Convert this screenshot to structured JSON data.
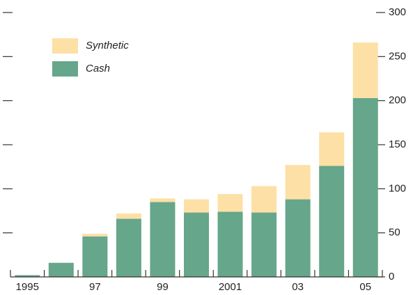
{
  "chart_data": {
    "type": "stacked_bar",
    "categories": [
      "1995",
      null,
      "97",
      null,
      "99",
      null,
      "2001",
      null,
      "03",
      null,
      "05"
    ],
    "series": [
      {
        "name": "Cash",
        "color": "#66a68a",
        "values": [
          2,
          16,
          46,
          66,
          85,
          73,
          74,
          73,
          88,
          126,
          203
        ]
      },
      {
        "name": "Synthetic",
        "color": "#fde0a6",
        "values": [
          0,
          0,
          3,
          6,
          4,
          15,
          20,
          30,
          39,
          38,
          63
        ]
      }
    ],
    "ylim": [
      0,
      300
    ],
    "yticks": [
      0,
      50,
      100,
      150,
      200,
      250,
      300
    ],
    "legend": "upper left"
  }
}
